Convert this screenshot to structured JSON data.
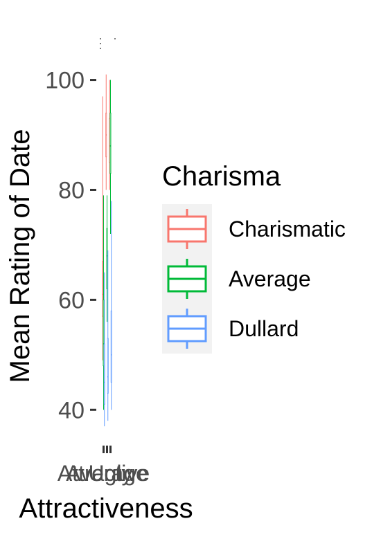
{
  "chart_data": {
    "type": "boxplot",
    "xlabel": "Attractiveness",
    "ylabel": "Mean Rating of Date",
    "categories": [
      "Attractive",
      "Average",
      "Ugly"
    ],
    "ylim": [
      35,
      108
    ],
    "yticks": [
      40,
      60,
      80,
      100
    ],
    "grid": false,
    "legend": {
      "title": "Charisma",
      "position": "right"
    },
    "series": [
      {
        "name": "Charismatic",
        "color": "#F8766D",
        "boxes": [
          {
            "category": "Attractive",
            "min": 49,
            "q1": 57,
            "median": 61,
            "q3": 67,
            "max": 97
          },
          {
            "category": "Average",
            "min": 80,
            "q1": 86,
            "median": 90,
            "q3": 94,
            "max": 101
          },
          {
            "category": "Ugly",
            "min": 80,
            "q1": 85,
            "median": 88,
            "q3": 93,
            "max": 100
          }
        ]
      },
      {
        "name": "Average",
        "color": "#00BA38",
        "boxes": [
          {
            "category": "Attractive",
            "min": 40,
            "q1": 48,
            "median": 52,
            "q3": 60,
            "max": 79
          },
          {
            "category": "Average",
            "min": 56,
            "q1": 62,
            "median": 68,
            "q3": 73,
            "max": 79
          },
          {
            "category": "Ugly",
            "min": 72,
            "q1": 83,
            "median": 88,
            "q3": 94,
            "max": 100
          }
        ]
      },
      {
        "name": "Dullard",
        "color": "#619CFF",
        "boxes": [
          {
            "category": "Attractive",
            "min": 37,
            "q1": 41,
            "median": 45,
            "q3": 52,
            "max": 65
          },
          {
            "category": "Average",
            "min": 38,
            "q1": 43,
            "median": 46,
            "q3": 53,
            "max": 69
          },
          {
            "category": "Ugly",
            "min": 40,
            "q1": 45,
            "median": 50,
            "q3": 58,
            "max": 78
          }
        ]
      }
    ]
  }
}
